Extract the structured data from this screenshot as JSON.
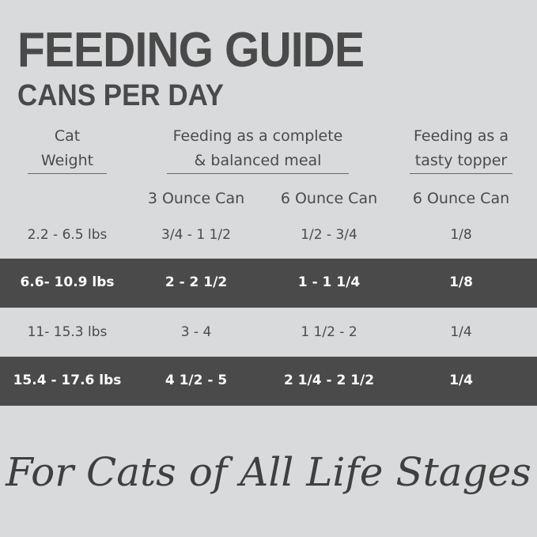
{
  "header": {
    "title": "FEEDING GUIDE",
    "subtitle": "CANS PER DAY"
  },
  "table": {
    "group_headers": [
      "Cat Weight",
      "Feeding as a complete & balanced meal",
      "Feeding as a tasty topper"
    ],
    "sub_headers": [
      "3 Ounce Can",
      "6 Ounce Can",
      "6 Ounce Can"
    ],
    "rows": [
      [
        "2.2 - 6.5 lbs",
        "3/4 - 1 1/2",
        "1/2 - 3/4",
        "1/8"
      ],
      [
        "6.6- 10.9 lbs",
        "2 - 2 1/2",
        "1 - 1 1/4",
        "1/8"
      ],
      [
        "11- 15.3 lbs",
        "3 - 4",
        "1 1/2 - 2",
        "1/4"
      ],
      [
        "15.4 - 17.6 lbs",
        "4 1/2 - 5",
        "2 1/4 - 2 1/2",
        "1/4"
      ]
    ]
  },
  "footer": "For Cats of All Life Stages"
}
